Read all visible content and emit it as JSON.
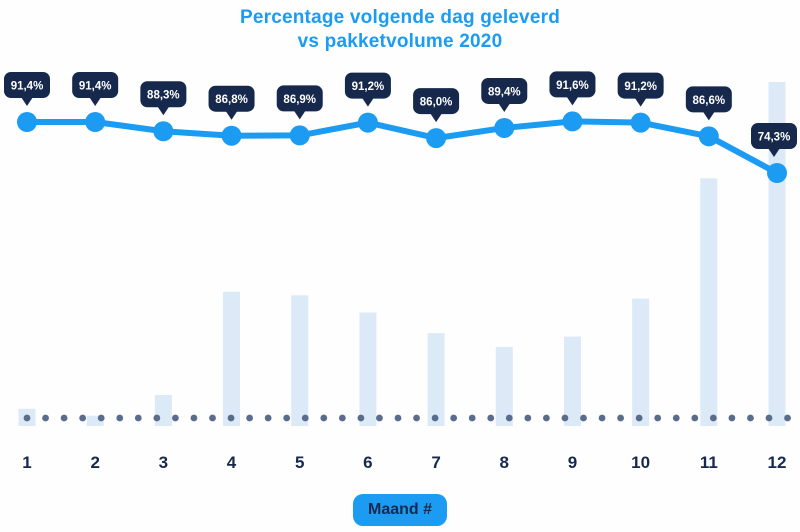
{
  "title": {
    "line1": "Percentage volgende dag geleverd",
    "line2": "vs pakketvolume 2020"
  },
  "x_axis": {
    "label": "Maand #",
    "categories": [
      "1",
      "2",
      "3",
      "4",
      "5",
      "6",
      "7",
      "8",
      "9",
      "10",
      "11",
      "12"
    ]
  },
  "chart_data": {
    "type": "combo",
    "title": "Percentage volgende dag geleverd vs pakketvolume 2020",
    "xlabel": "Maand #",
    "ylabel": "",
    "grid": false,
    "legend": "none",
    "categories": [
      1,
      2,
      3,
      4,
      5,
      6,
      7,
      8,
      9,
      10,
      11,
      12
    ],
    "series": [
      {
        "name": "Percentage volgende dag geleverd",
        "type": "line",
        "unit": "%",
        "values": [
          91.4,
          91.4,
          88.3,
          86.8,
          86.9,
          91.2,
          86.0,
          89.4,
          91.6,
          91.2,
          86.6,
          74.3
        ],
        "labels": [
          "91,4%",
          "91,4%",
          "88,3%",
          "86,8%",
          "86,9%",
          "91,2%",
          "86,0%",
          "89,4%",
          "91,6%",
          "91,2%",
          "86,6%",
          "74,3%"
        ],
        "value_range_shown": [
          74.3,
          91.6
        ],
        "annotation_style": "dark speech-bubble badge above each point"
      },
      {
        "name": "Pakketvolume 2020",
        "type": "bar",
        "unit": "relative volume index (tallest bar = 100, no y-axis shown)",
        "values": [
          5,
          3,
          9,
          39,
          38,
          33,
          27,
          23,
          26,
          37,
          72,
          100
        ]
      }
    ],
    "baseline_style": "dotted horizontal line of gray-blue dots along the x-axis"
  },
  "colors": {
    "accent_blue": "#1b9cf2",
    "bar_fill": "#dceaf8",
    "badge_bg": "#16294d",
    "badge_text": "#ffffff",
    "dot_gray": "#5a6c8c",
    "axis_text": "#16294d",
    "background": "#fefefe"
  }
}
